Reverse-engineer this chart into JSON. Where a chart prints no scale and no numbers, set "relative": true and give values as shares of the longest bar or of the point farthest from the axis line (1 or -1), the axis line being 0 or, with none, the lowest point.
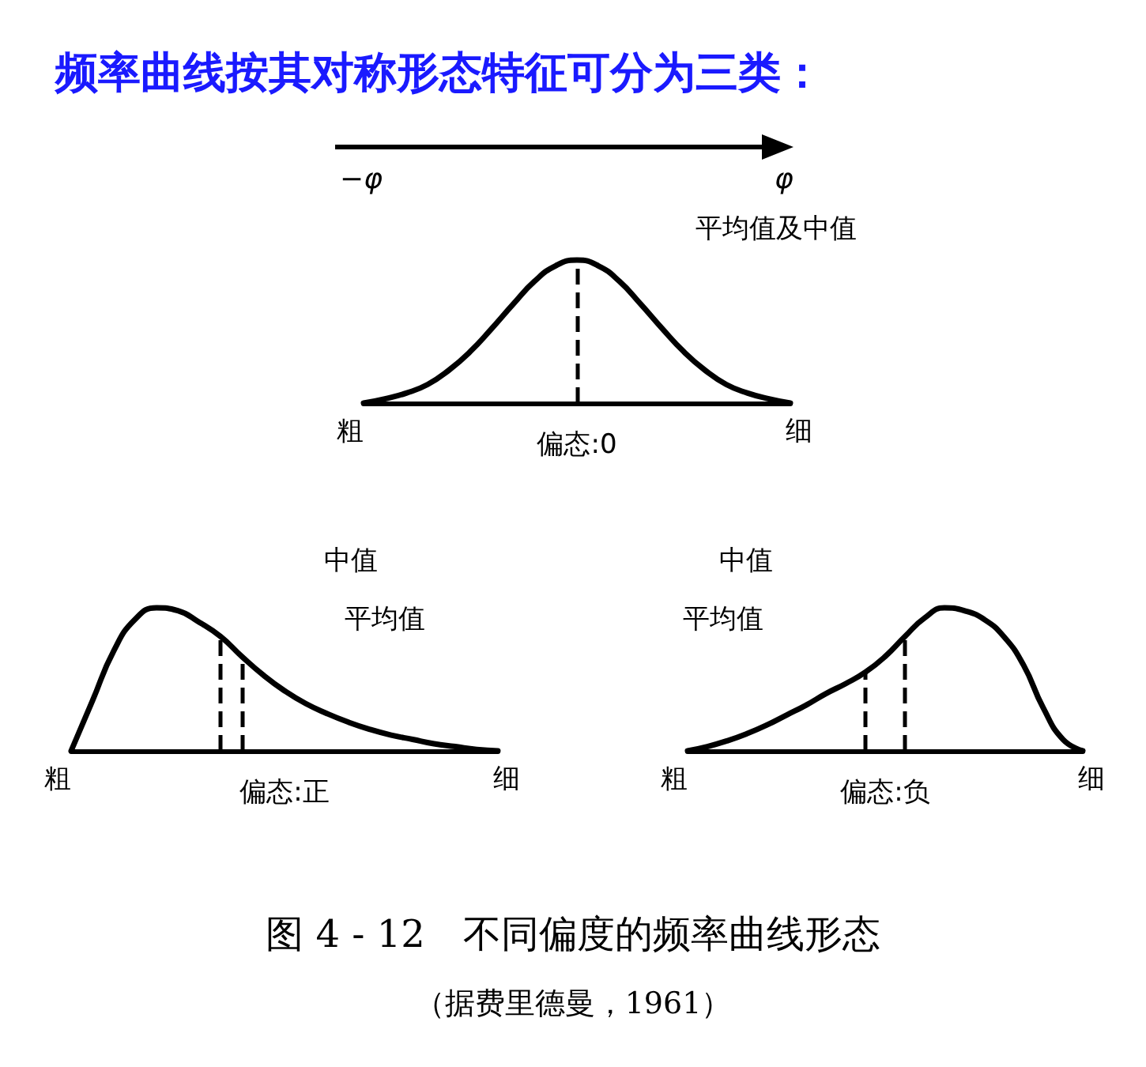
{
  "chart_data": [
    {
      "type": "line",
      "relative": true,
      "title": "频率曲线按其对称形态特征可分为三类：",
      "xlabel": "偏态:0",
      "categories": [
        null,
        null,
        null,
        null,
        null,
        null,
        null,
        null,
        null,
        null,
        null,
        null,
        null,
        null,
        null,
        null,
        null,
        null,
        null,
        null,
        null
      ],
      "series": [
        {
          "color": "#000000",
          "values": [
            0,
            0.03,
            0.07,
            0.13,
            0.23,
            0.36,
            0.52,
            0.69,
            0.85,
            0.96,
            1,
            0.96,
            0.85,
            0.69,
            0.52,
            0.36,
            0.23,
            0.13,
            0.07,
            0.03,
            0
          ]
        }
      ],
      "annotations": [
        "平均值及中值",
        "粗",
        "细",
        "−φ",
        "φ"
      ]
    },
    {
      "type": "line",
      "relative": true,
      "xlabel": "偏态:正",
      "categories": [
        null,
        null,
        null,
        null,
        null,
        null,
        null,
        null,
        null,
        null,
        null,
        null,
        null,
        null,
        null,
        null,
        null,
        null,
        null,
        null,
        null
      ],
      "series": [
        {
          "color": "#000000",
          "values": [
            0,
            0.35,
            0.7,
            0.92,
            1,
            0.98,
            0.9,
            0.8,
            0.66,
            0.53,
            0.42,
            0.33,
            0.26,
            0.2,
            0.15,
            0.11,
            0.08,
            0.05,
            0.03,
            0.01,
            0
          ]
        }
      ],
      "annotations": [
        "中值",
        "平均值",
        "粗",
        "细"
      ]
    },
    {
      "type": "line",
      "relative": true,
      "xlabel": "偏态:负",
      "categories": [
        null,
        null,
        null,
        null,
        null,
        null,
        null,
        null,
        null,
        null,
        null,
        null,
        null,
        null,
        null,
        null,
        null,
        null,
        null,
        null,
        null
      ],
      "series": [
        {
          "color": "#000000",
          "values": [
            0,
            0.03,
            0.07,
            0.12,
            0.18,
            0.25,
            0.32,
            0.4,
            0.47,
            0.55,
            0.66,
            0.8,
            0.93,
            1,
            0.98,
            0.92,
            0.8,
            0.6,
            0.3,
            0.08,
            0
          ]
        }
      ],
      "annotations": [
        "中值",
        "平均值",
        "粗",
        "细",
        "图 4 - 12　不同偏度的频率曲线形态",
        "（据费里德曼，1961）"
      ]
    }
  ]
}
